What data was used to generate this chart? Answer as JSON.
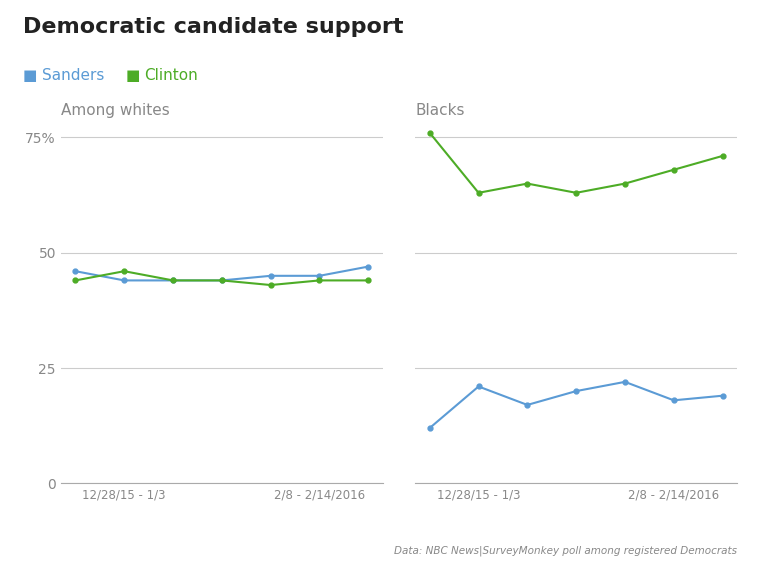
{
  "title": "Democratic candidate support",
  "subtitle_source": "Data: NBC News|SurveyMonkey poll among registered Democrats",
  "legend": {
    "sanders": {
      "label": "Sanders",
      "color": "#5b9bd5"
    },
    "clinton": {
      "label": "Clinton",
      "color": "#4dac26"
    }
  },
  "left_panel": {
    "title": "Among whites",
    "x_ticks": [
      "12/28/15 - 1/3",
      "2/8 - 2/14/2016"
    ],
    "x_positions": [
      0,
      1,
      2,
      3,
      4,
      5,
      6
    ],
    "sanders": [
      46,
      44,
      44,
      44,
      45,
      45,
      47
    ],
    "clinton": [
      44,
      46,
      44,
      44,
      43,
      44,
      44
    ]
  },
  "right_panel": {
    "title": "Blacks",
    "x_ticks": [
      "12/28/15 - 1/3",
      "2/8 - 2/14/2016"
    ],
    "x_positions": [
      0,
      1,
      2,
      3,
      4,
      5,
      6
    ],
    "sanders": [
      12,
      21,
      17,
      20,
      22,
      18,
      19
    ],
    "clinton": [
      76,
      63,
      65,
      63,
      65,
      68,
      71
    ]
  },
  "ylim": [
    0,
    78
  ],
  "yticks": [
    0,
    25,
    50,
    75
  ],
  "ytick_labels": [
    "0",
    "25",
    "50",
    "75%"
  ],
  "background_color": "#ffffff",
  "grid_color": "#cccccc",
  "text_color": "#888888",
  "title_color": "#222222",
  "panel_title_color": "#888888"
}
